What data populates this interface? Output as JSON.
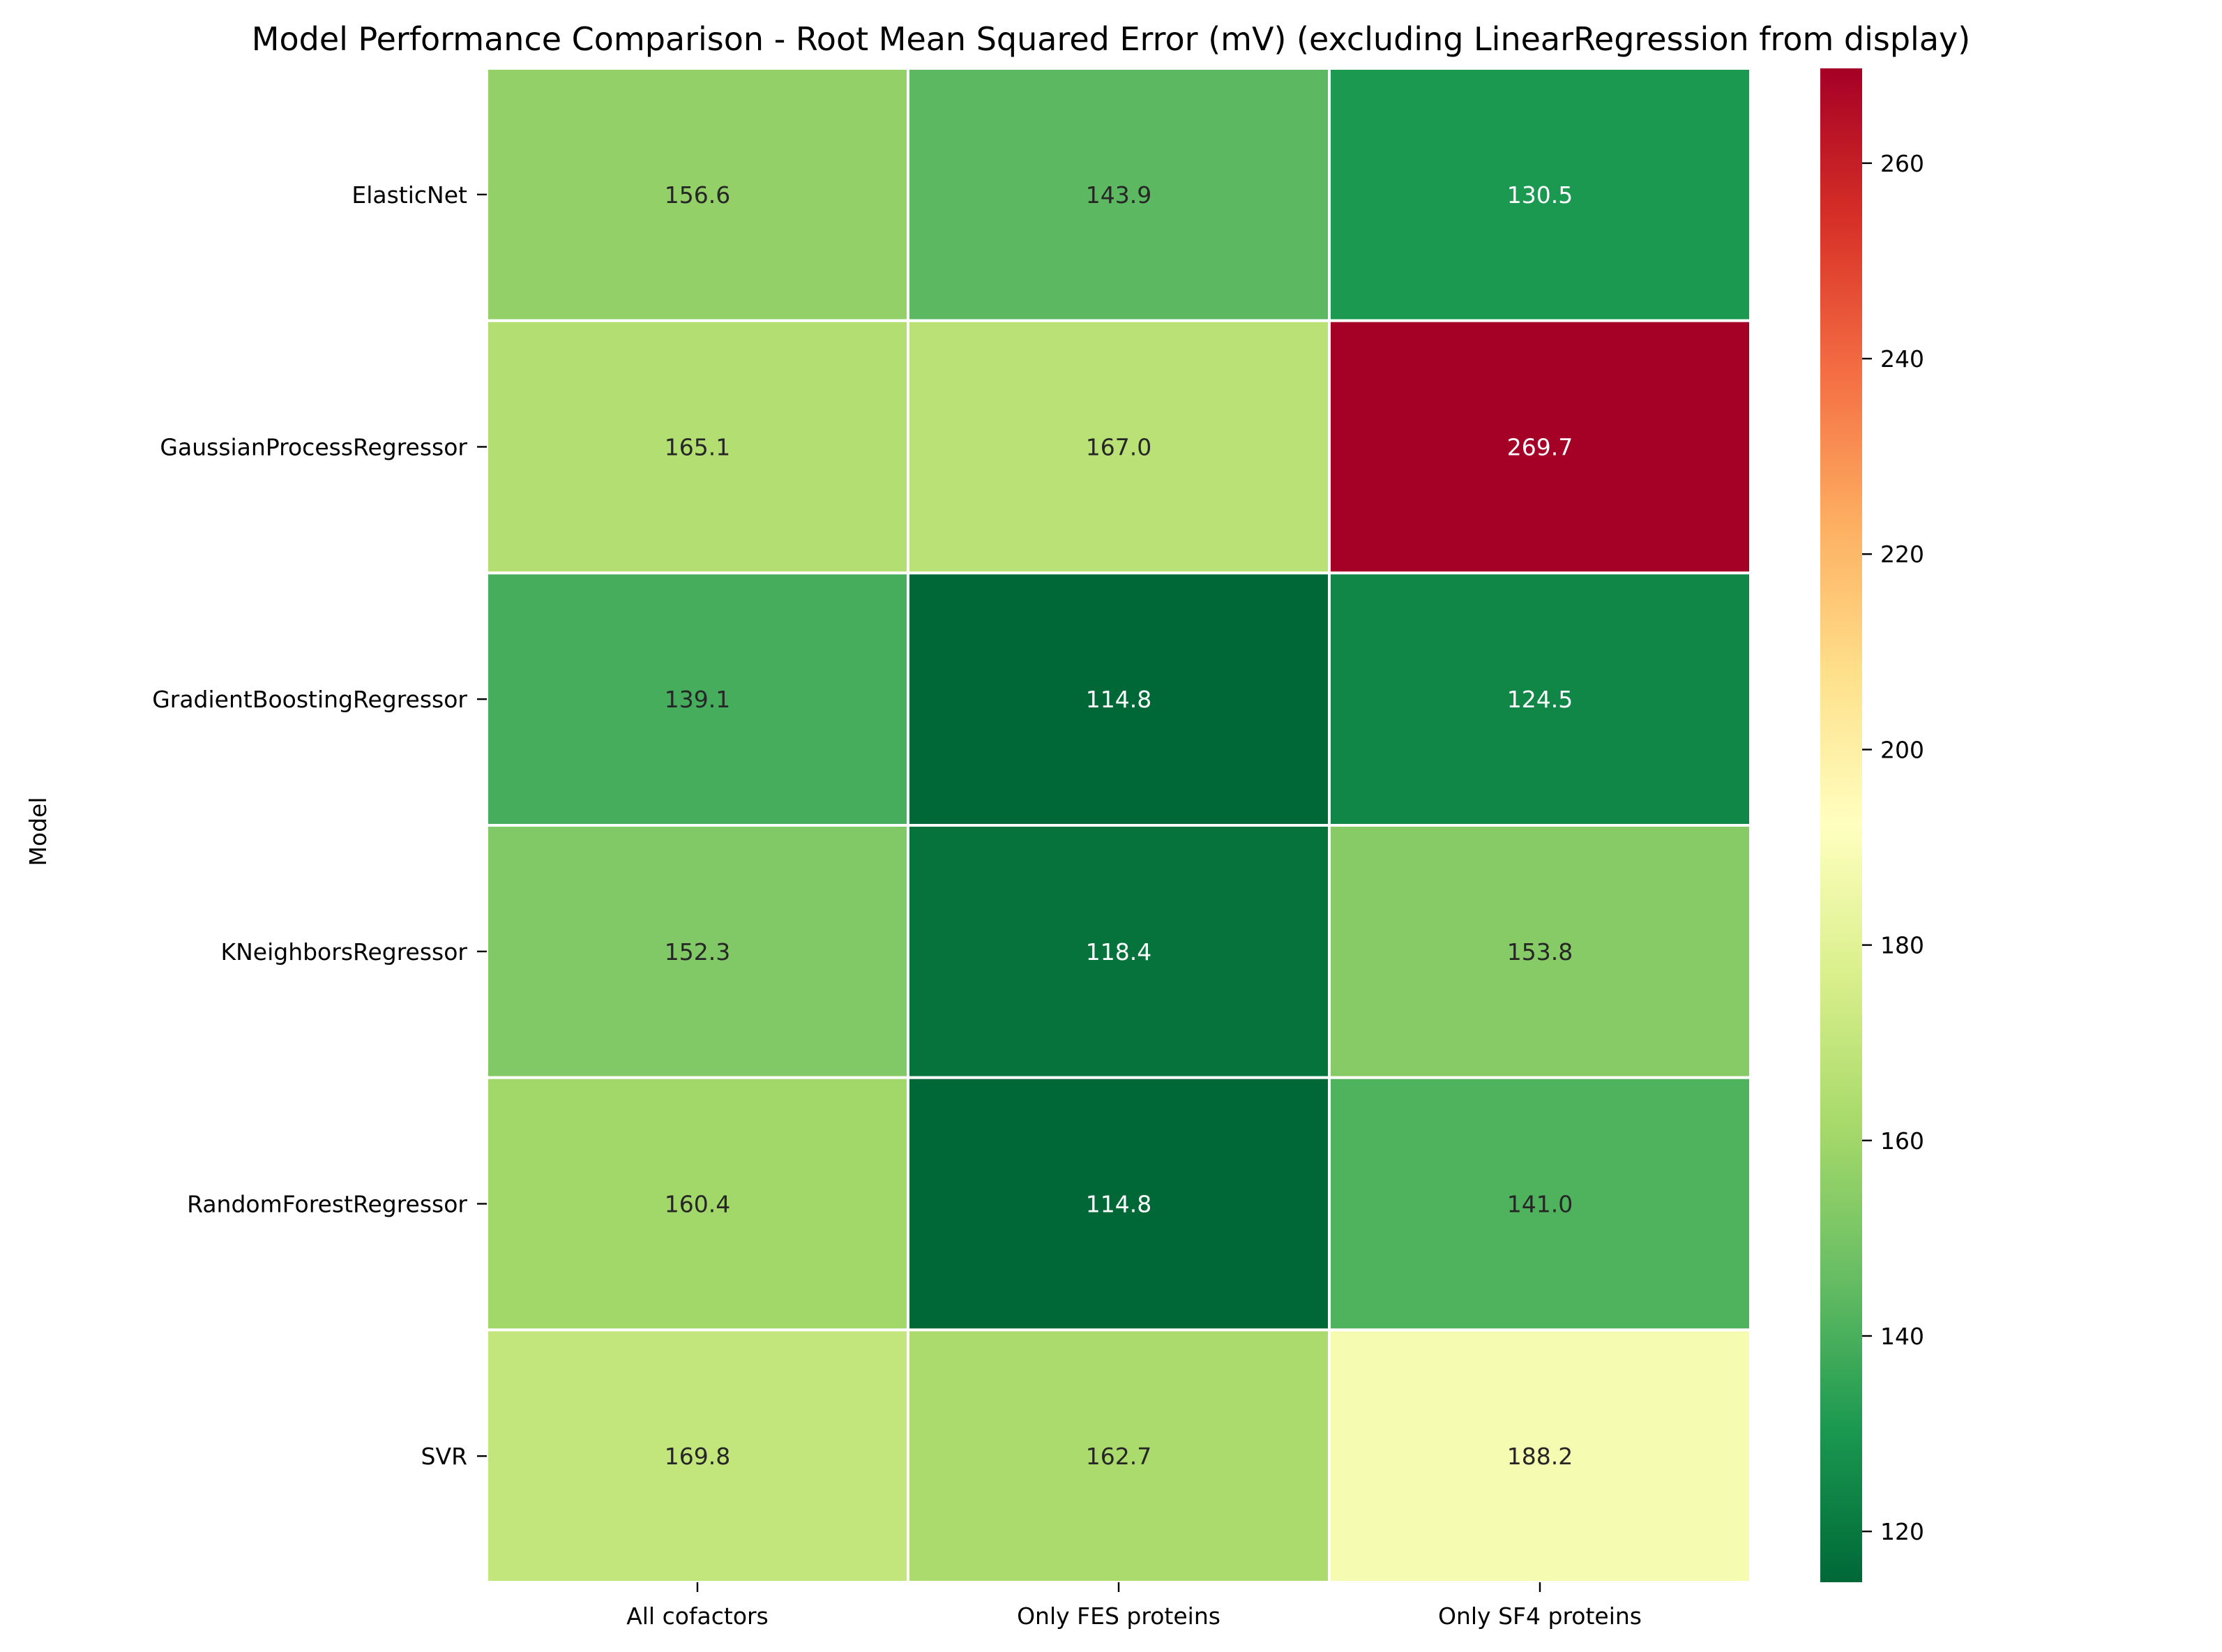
{
  "chart_data": {
    "type": "heatmap",
    "title": "Model Performance Comparison - Root Mean Squared Error (mV) (excluding LinearRegression from display)",
    "ylabel": "Model",
    "xlabel": "",
    "rows": [
      "ElasticNet",
      "GaussianProcessRegressor",
      "GradientBoostingRegressor",
      "KNeighborsRegressor",
      "RandomForestRegressor",
      "SVR"
    ],
    "columns": [
      "All cofactors",
      "Only FES proteins",
      "Only SF4 proteins"
    ],
    "values": [
      [
        156.6,
        143.9,
        130.5
      ],
      [
        165.1,
        167.0,
        269.7
      ],
      [
        139.1,
        114.8,
        124.5
      ],
      [
        152.3,
        118.4,
        153.8
      ],
      [
        160.4,
        114.8,
        141.0
      ],
      [
        169.8,
        162.7,
        188.2
      ]
    ],
    "value_labels": [
      [
        "156.6",
        "143.9",
        "130.5"
      ],
      [
        "165.1",
        "167.0",
        "269.7"
      ],
      [
        "139.1",
        "114.8",
        "124.5"
      ],
      [
        "152.3",
        "118.4",
        "153.8"
      ],
      [
        "160.4",
        "114.8",
        "141.0"
      ],
      [
        "169.8",
        "162.7",
        "188.2"
      ]
    ],
    "colormap": "RdYlGn_r",
    "color_range": [
      114.8,
      269.7
    ],
    "colorbar_ticks": [
      "120",
      "140",
      "160",
      "180",
      "200",
      "220",
      "240",
      "260"
    ],
    "colorbar_tick_values": [
      120,
      140,
      160,
      180,
      200,
      220,
      240,
      260
    ],
    "grid_line_color": "#ffffff"
  }
}
